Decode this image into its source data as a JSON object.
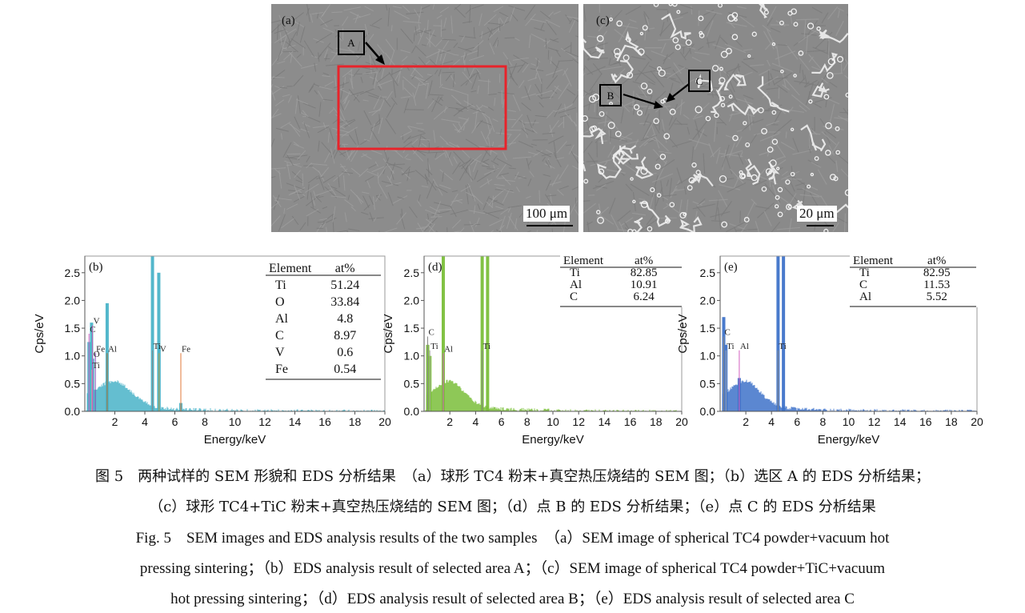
{
  "panels": {
    "a": {
      "label": "(a)",
      "box_label": "A",
      "scale": "100 μm"
    },
    "c": {
      "label": "(c)",
      "box_labels": [
        "B",
        "C"
      ],
      "scale": "20 μm"
    }
  },
  "colors": {
    "selection": "#e8232a",
    "b_series": "#4ab3c8",
    "d_series": "#7bbf3a",
    "e_series": "#3f73c9",
    "pink_marker": "#d35fbf",
    "fe_marker": "#e07a3a"
  },
  "chart_data": [
    {
      "type": "area",
      "panel": "(b)",
      "xlabel": "Energy/keV",
      "ylabel": "Cps/eV",
      "xlim": [
        0,
        20
      ],
      "ylim": [
        0,
        2.8
      ],
      "xticks": [
        2,
        4,
        6,
        8,
        10,
        12,
        14,
        16,
        18,
        20
      ],
      "xtick_labels": [
        "2",
        "4",
        "6",
        "8",
        "10",
        "12",
        "14",
        "16",
        "18",
        "20"
      ],
      "yticks": [
        0.0,
        0.5,
        1.0,
        1.5,
        2.0,
        2.5
      ],
      "ytick_labels": [
        "0.0",
        "0.5",
        "1.0",
        "1.5",
        "2.0",
        "2.5"
      ],
      "peaks": [
        {
          "x": 0.28,
          "y": 1.25
        },
        {
          "x": 0.45,
          "y": 1.6
        },
        {
          "x": 0.52,
          "y": 0.95
        },
        {
          "x": 1.49,
          "y": 1.95
        },
        {
          "x": 4.51,
          "y": 2.8
        },
        {
          "x": 4.93,
          "y": 2.5
        },
        {
          "x": 4.95,
          "y": 1.15
        },
        {
          "x": 6.4,
          "y": 0.15
        }
      ],
      "markers": [
        {
          "label": "C",
          "x": 0.28,
          "y": 1.4
        },
        {
          "label": "V",
          "x": 0.51,
          "y": 1.55
        },
        {
          "label": "Fe",
          "x": 0.7,
          "y": 1.05
        },
        {
          "label": "Al",
          "x": 1.49,
          "y": 1.05
        },
        {
          "label": "O",
          "x": 0.52,
          "y": 0.95
        },
        {
          "label": "Ti",
          "x": 0.45,
          "y": 0.75
        },
        {
          "label": "Ti",
          "x": 4.51,
          "y": 1.1
        },
        {
          "label": "V",
          "x": 4.95,
          "y": 1.05
        },
        {
          "label": "Fe",
          "x": 6.4,
          "y": 1.05
        }
      ],
      "table": {
        "headers": [
          "Element",
          "at%"
        ],
        "rows": [
          [
            "Ti",
            "51.24"
          ],
          [
            "O",
            "33.84"
          ],
          [
            "Al",
            "4.8"
          ],
          [
            "C",
            "8.97"
          ],
          [
            "V",
            "0.6"
          ],
          [
            "Fe",
            "0.54"
          ]
        ]
      }
    },
    {
      "type": "area",
      "panel": "(d)",
      "xlabel": "Energy/keV",
      "ylabel": "Cps/eV",
      "xlim": [
        0,
        20
      ],
      "ylim": [
        0,
        2.8
      ],
      "xticks": [
        2,
        4,
        6,
        8,
        10,
        12,
        14,
        16,
        18,
        20
      ],
      "xtick_labels": [
        "2",
        "4",
        "6",
        "8",
        "10",
        "12",
        "14",
        "16",
        "18",
        "20"
      ],
      "yticks": [
        0.0,
        0.5,
        1.0,
        1.5,
        2.0,
        2.5
      ],
      "ytick_labels": [
        "0.0",
        "0.5",
        "1.0",
        "1.5",
        "2.0",
        "2.5"
      ],
      "peaks": [
        {
          "x": 0.28,
          "y": 1.2
        },
        {
          "x": 0.45,
          "y": 1.0
        },
        {
          "x": 1.49,
          "y": 2.8
        },
        {
          "x": 4.51,
          "y": 2.8
        },
        {
          "x": 4.93,
          "y": 2.8
        }
      ],
      "markers": [
        {
          "label": "C",
          "x": 0.28,
          "y": 1.35
        },
        {
          "label": "Ti",
          "x": 0.45,
          "y": 1.1
        },
        {
          "label": "Al",
          "x": 1.49,
          "y": 1.05
        },
        {
          "label": "Ti",
          "x": 4.51,
          "y": 1.1
        }
      ],
      "table": {
        "headers": [
          "Element",
          "at%"
        ],
        "rows": [
          [
            "Ti",
            "82.85"
          ],
          [
            "Al",
            "10.91"
          ],
          [
            "C",
            "6.24"
          ]
        ]
      }
    },
    {
      "type": "area",
      "panel": "(e)",
      "xlabel": "Energy/keV",
      "ylabel": "Cps/eV",
      "xlim": [
        0,
        20
      ],
      "ylim": [
        0,
        2.8
      ],
      "xticks": [
        2,
        4,
        6,
        8,
        10,
        12,
        14,
        16,
        18,
        20
      ],
      "xtick_labels": [
        "2",
        "4",
        "6",
        "8",
        "10",
        "12",
        "14",
        "16",
        "18",
        "20"
      ],
      "yticks": [
        0.0,
        0.5,
        1.0,
        1.5,
        2.0,
        2.5
      ],
      "ytick_labels": [
        "0.0",
        "0.5",
        "1.0",
        "1.5",
        "2.0",
        "2.5"
      ],
      "peaks": [
        {
          "x": 0.28,
          "y": 1.7
        },
        {
          "x": 0.45,
          "y": 1.2
        },
        {
          "x": 1.49,
          "y": 0.6
        },
        {
          "x": 4.51,
          "y": 2.8
        },
        {
          "x": 4.93,
          "y": 2.8
        }
      ],
      "markers": [
        {
          "label": "C",
          "x": 0.28,
          "y": 1.35
        },
        {
          "label": "Ti",
          "x": 0.45,
          "y": 1.1
        },
        {
          "label": "Al",
          "x": 1.49,
          "y": 1.1
        },
        {
          "label": "Ti",
          "x": 4.51,
          "y": 1.1
        }
      ],
      "table": {
        "headers": [
          "Element",
          "at%"
        ],
        "rows": [
          [
            "Ti",
            "82.95"
          ],
          [
            "C",
            "11.53"
          ],
          [
            "Al",
            "5.52"
          ]
        ]
      }
    }
  ],
  "caption": {
    "cn_line1": "图 5　两种试样的 SEM 形貌和 EDS 分析结果　（a）球形 TC4 粉末+真空热压烧结的 SEM 图；（b）选区 A 的 EDS 分析结果；",
    "cn_line2": "（c）球形 TC4+TiC 粉末+真空热压烧结的 SEM 图；（d）点 B 的 EDS 分析结果；（e）点 C 的 EDS 分析结果",
    "en_line1": "Fig. 5　SEM images and EDS analysis results of the two samples　（a）SEM image of spherical TC4 powder+vacuum hot",
    "en_line2": "pressing sintering；（b）EDS analysis result of selected area A；（c）SEM image of spherical TC4 powder+TiC+vacuum",
    "en_line3": "hot pressing sintering；（d）EDS analysis result of selected area B；（e）EDS analysis result of selected area C"
  }
}
